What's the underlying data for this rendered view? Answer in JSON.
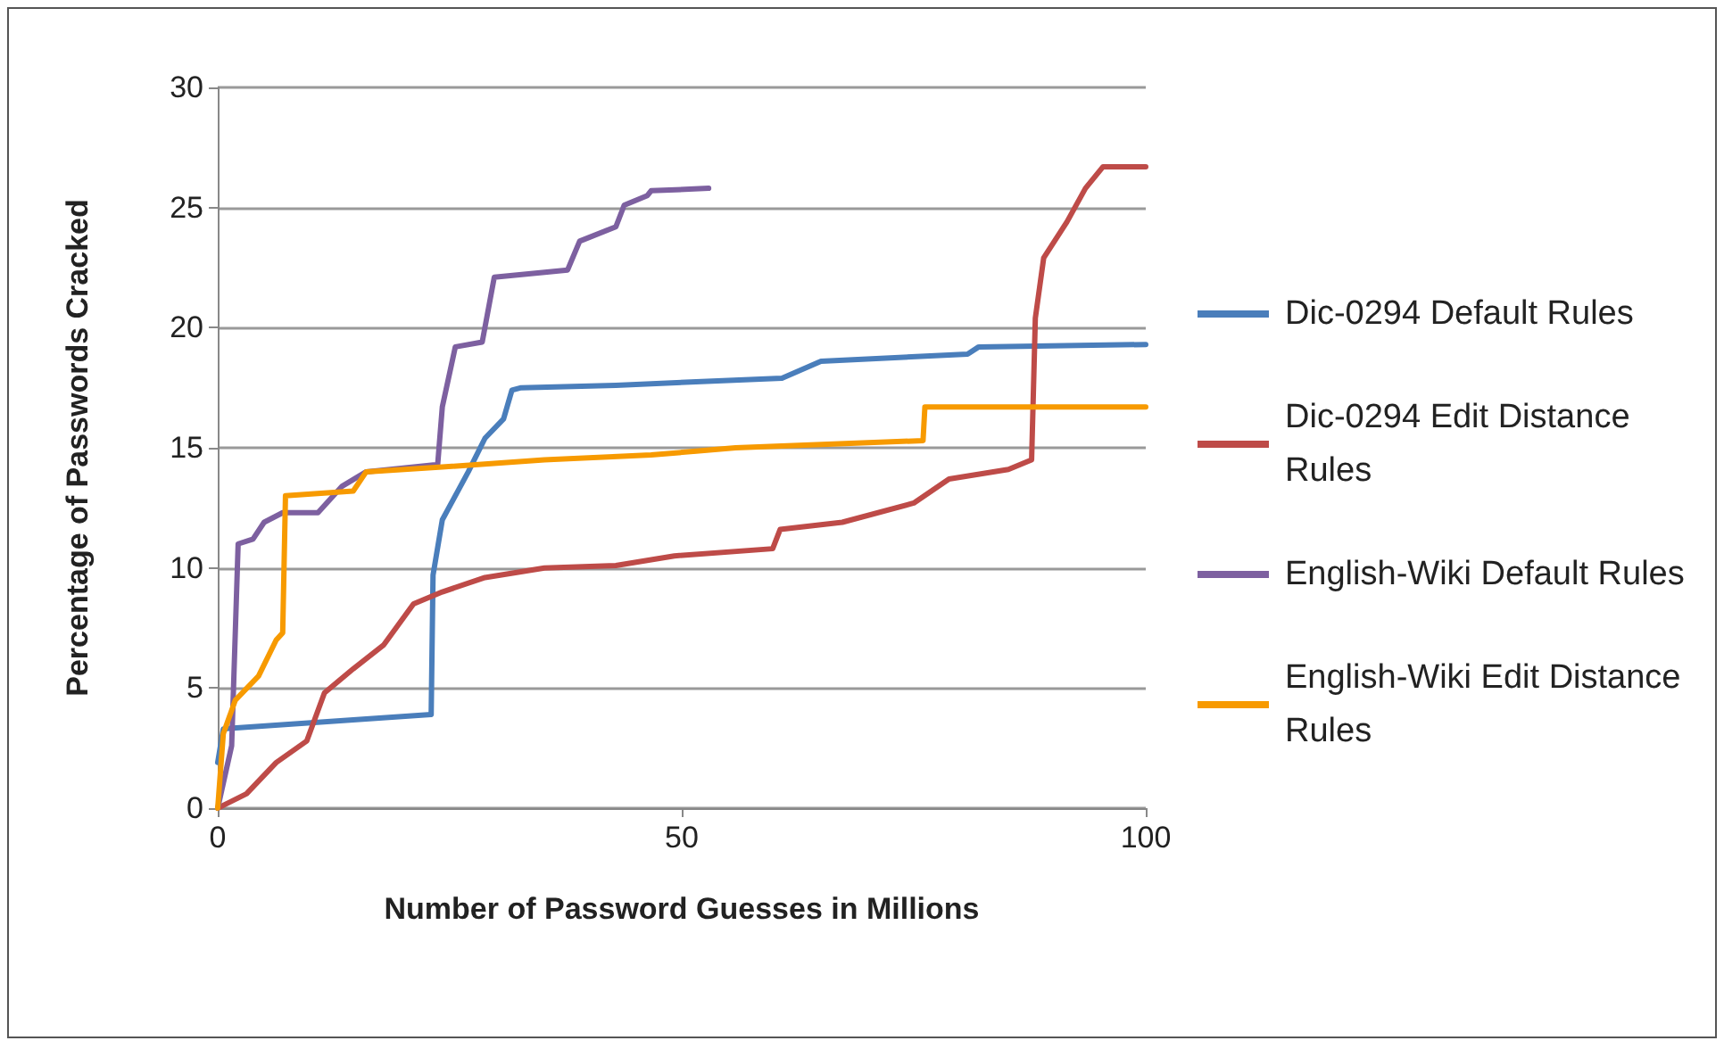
{
  "chart_data": {
    "type": "line",
    "xlabel": "Number of Password Guesses in Millions",
    "ylabel": "Percentage of Passwords Cracked",
    "xlim": [
      0,
      100
    ],
    "xticks": [
      0,
      50,
      100
    ],
    "ylim": [
      0,
      30
    ],
    "yticks": [
      0,
      5,
      10,
      15,
      20,
      25,
      30
    ],
    "grid": "y",
    "legend": "right",
    "marker": "none",
    "line_style": "solid",
    "series": [
      {
        "name": "Dic-0294 Default Rules",
        "color": "#4a7ebb",
        "x": [
          0,
          0.6,
          23,
          23.2,
          24.2,
          27,
          28.8,
          30.8,
          31.7,
          32.7,
          42.9,
          60.8,
          65,
          80.8,
          82,
          100
        ],
        "values": [
          1.9,
          3.3,
          3.9,
          9.7,
          12,
          14,
          15.4,
          16.2,
          17.4,
          17.5,
          17.6,
          17.9,
          18.6,
          18.9,
          19.2,
          19.3
        ]
      },
      {
        "name": "Dic-0294 Edit Distance Rules",
        "color": "#be4b48",
        "x": [
          0,
          3.1,
          6.3,
          9.6,
          11.5,
          14.6,
          17.9,
          21.1,
          24.2,
          28.8,
          35.2,
          42.9,
          49.2,
          59.8,
          60.6,
          67.3,
          75,
          78.8,
          85.2,
          87.7,
          88.1,
          89,
          91.5,
          93.5,
          95.4,
          100
        ],
        "values": [
          0,
          0.6,
          1.9,
          2.8,
          4.8,
          5.8,
          6.8,
          8.5,
          9,
          9.6,
          10,
          10.1,
          10.5,
          10.8,
          11.6,
          11.9,
          12.7,
          13.7,
          14.1,
          14.5,
          20.4,
          22.9,
          24.4,
          25.8,
          26.7,
          26.7
        ]
      },
      {
        "name": "English-Wiki Default Rules",
        "color": "#7d60a0",
        "x": [
          0,
          1.5,
          2.2,
          3.8,
          5,
          7,
          10.8,
          13.4,
          16,
          23.7,
          24.2,
          25.6,
          28.5,
          29.8,
          37.7,
          39,
          42.9,
          43.8,
          46.3,
          46.7,
          52.9
        ],
        "values": [
          0,
          2.6,
          11,
          11.2,
          11.9,
          12.3,
          12.3,
          13.4,
          14,
          14.3,
          16.7,
          19.2,
          19.4,
          22.1,
          22.4,
          23.6,
          24.2,
          25.1,
          25.5,
          25.7,
          25.8
        ]
      },
      {
        "name": "English-Wiki Edit Distance Rules",
        "color": "#f79a00",
        "x": [
          0,
          0.6,
          1.9,
          4.4,
          6.3,
          7,
          7.3,
          14.6,
          16,
          24.2,
          35.2,
          46.7,
          55.8,
          76,
          76.2,
          100
        ],
        "values": [
          0,
          3.1,
          4.5,
          5.5,
          7,
          7.3,
          13,
          13.2,
          14,
          14.2,
          14.5,
          14.7,
          15,
          15.3,
          16.7,
          16.7
        ]
      }
    ]
  }
}
